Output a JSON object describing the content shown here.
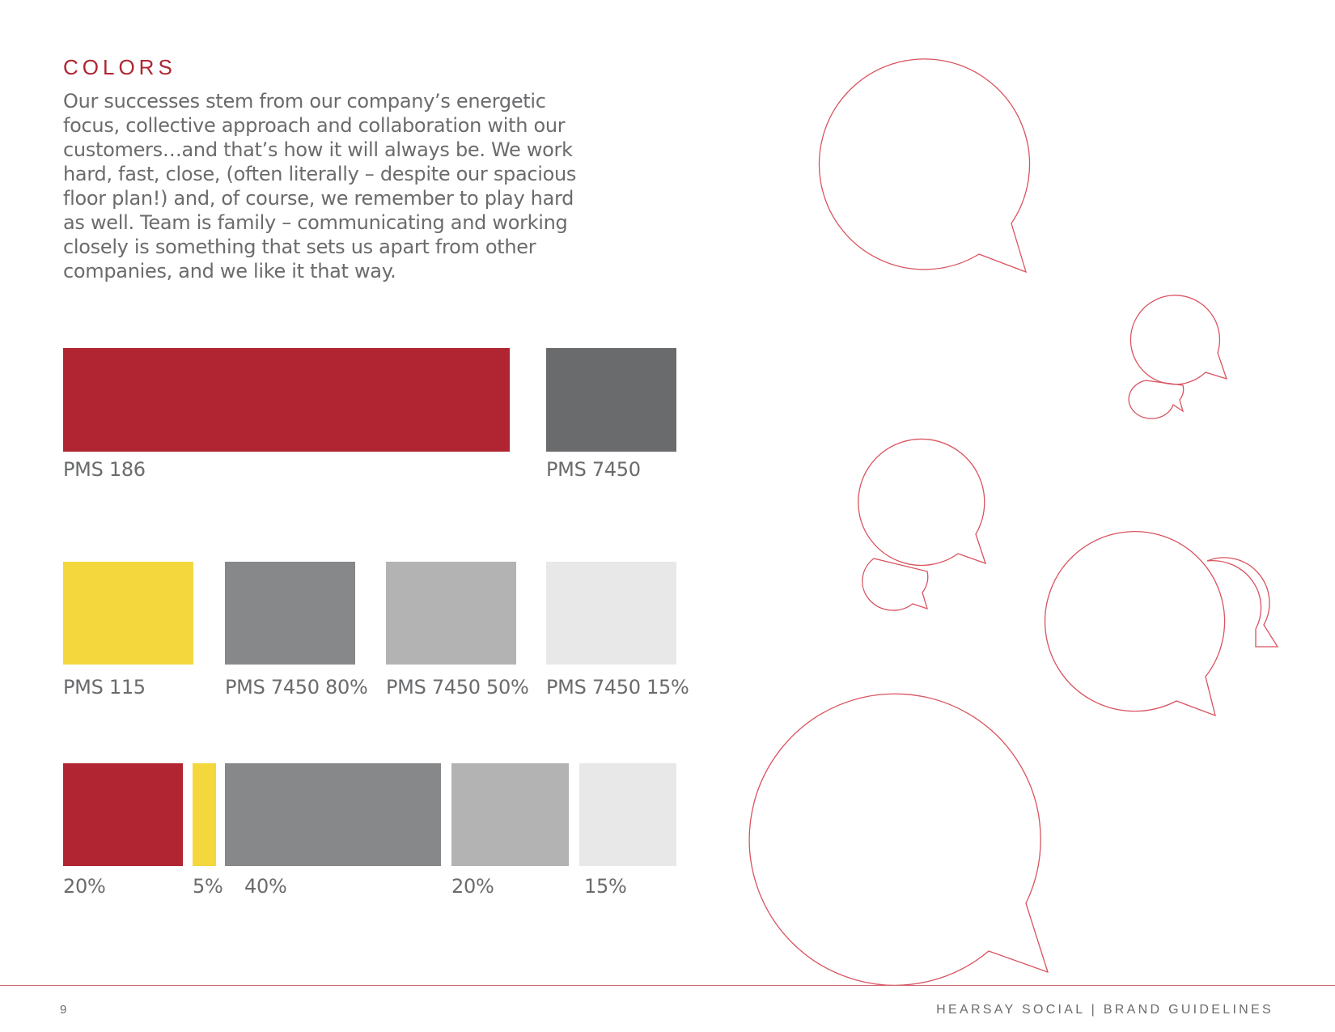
{
  "page": {
    "heading": "COLORS",
    "body_lines": [
      "Our successes stem from our company’s energetic",
      "focus, collective approach and collaboration with our",
      "customers…and that’s how it will always be. We work",
      "hard, fast, close, (often literally – despite our spacious",
      "floor plan!) and, of course, we remember to play hard",
      "as well. Team is family – communicating and working",
      "closely is something that sets us apart from other",
      "companies, and we like it that way."
    ]
  },
  "primary_colors": [
    {
      "label": "PMS 186",
      "color": "#b02531"
    },
    {
      "label": "PMS 7450",
      "color": "#6a6b6d"
    }
  ],
  "secondary_colors": [
    {
      "label": "PMS 115",
      "color": "#f4d73d"
    },
    {
      "label": "PMS 7450 80%",
      "color": "#878889"
    },
    {
      "label": "PMS 7450 50%",
      "color": "#b3b3b3"
    },
    {
      "label": "PMS 7450 15%",
      "color": "#e8e8e8"
    }
  ],
  "proportions": [
    {
      "label": "20%",
      "color": "#b02531"
    },
    {
      "label": "5%",
      "color": "#f4d73d"
    },
    {
      "label": "40%",
      "color": "#878889"
    },
    {
      "label": "20%",
      "color": "#b3b3b3"
    },
    {
      "label": "15%",
      "color": "#e8e8e8"
    }
  ],
  "decoration": {
    "bubble_outline_color": "#d9535f",
    "icon": "speech-bubble-icon"
  },
  "footer": {
    "page_number": "9",
    "title": "HEARSAY SOCIAL | BRAND GUIDELINES"
  }
}
